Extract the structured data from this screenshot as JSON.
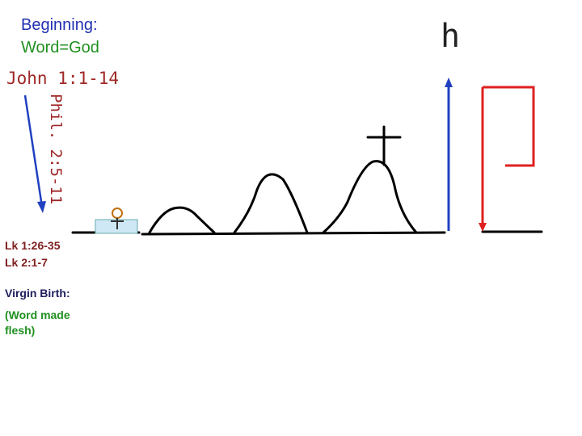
{
  "header": {
    "line1": "Beginning:",
    "line2": "Word=God",
    "reference": "John 1:1-14"
  },
  "side_reference": "Phil. 2:5-11",
  "corner_letter": "h",
  "notes": {
    "ref1": "Lk 1:26-35",
    "ref2": "Lk 2:1-7",
    "heading": "Virgin Birth:",
    "detail": "(Word made flesh)"
  }
}
